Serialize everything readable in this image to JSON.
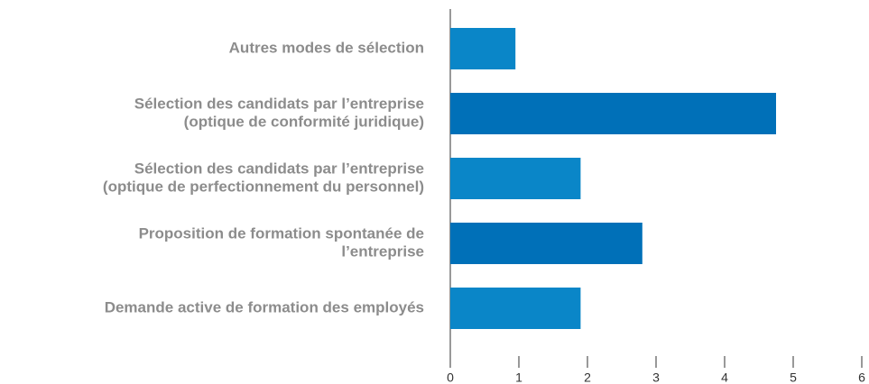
{
  "chart_data": {
    "type": "hbar",
    "categories": [
      [
        "Autres modes de sélection"
      ],
      [
        "Sélection des candidats par l’entreprise",
        "(optique de conformité juridique)"
      ],
      [
        "Sélection des candidats par l’entreprise",
        "(optique de perfectionnement du personnel)"
      ],
      [
        "Proposition de formation spontanée de",
        "l’entreprise"
      ],
      [
        "Demande active de formation des employés"
      ]
    ],
    "values": [
      0.95,
      4.75,
      1.9,
      2.8,
      1.9
    ],
    "colors": [
      "#0a86c8",
      "#0070b8",
      "#0a86c8",
      "#0070b8",
      "#0a86c8"
    ],
    "xlim": [
      0,
      6
    ],
    "xticks": [
      0,
      1,
      2,
      3,
      4,
      5,
      6
    ],
    "grid": false
  }
}
